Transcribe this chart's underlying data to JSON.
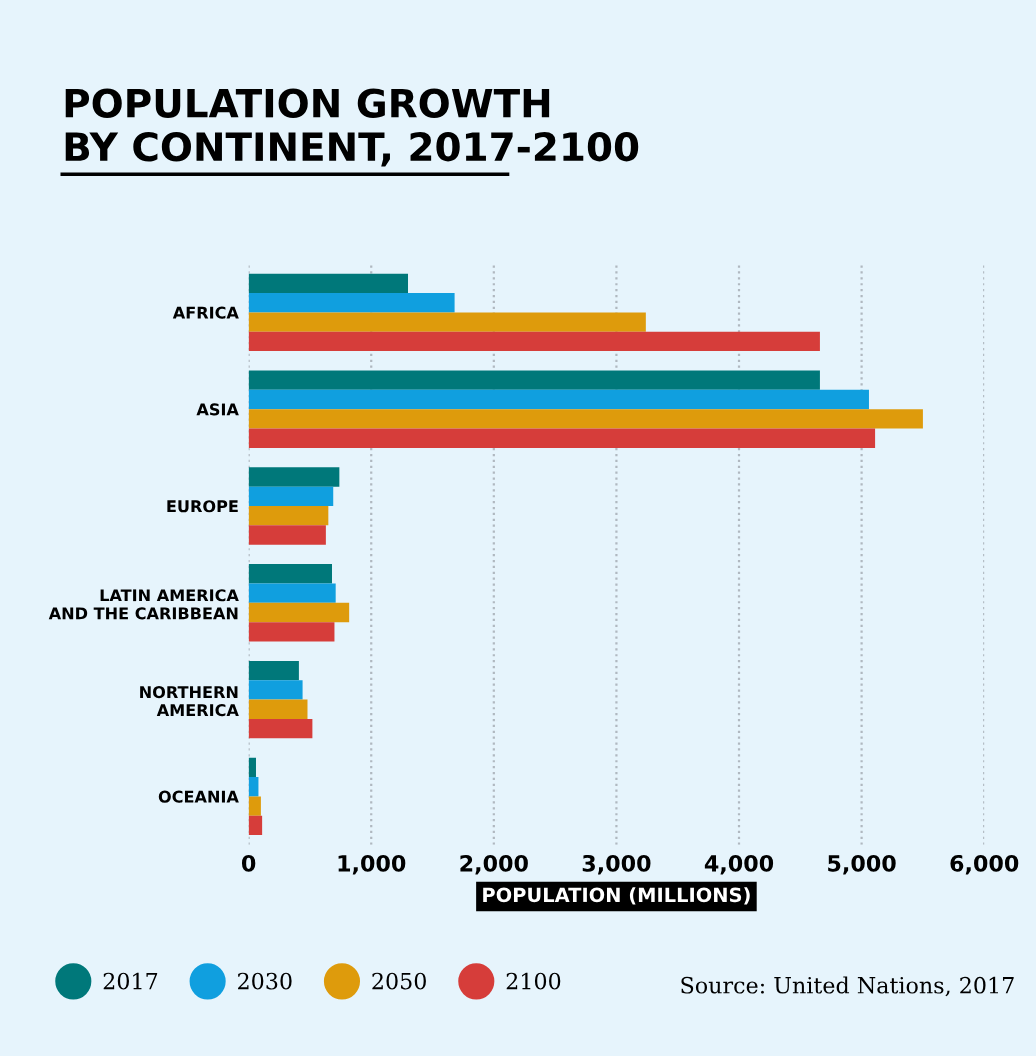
{
  "chart_data": {
    "type": "bar",
    "orientation": "horizontal",
    "title": "POPULATION GROWTH\nBY CONTINENT, 2017-2100",
    "xlabel": "POPULATION (MILLIONS)",
    "categories": [
      "AFRICA",
      "ASIA",
      "EUROPE",
      "LATIN AMERICA\nAND THE CARIBBEAN",
      "NORTHERN\nAMERICA",
      "OCEANIA"
    ],
    "series": [
      {
        "name": "2017",
        "color": "#00787a",
        "values": [
          1300,
          4660,
          740,
          680,
          410,
          60
        ]
      },
      {
        "name": "2030",
        "color": "#109fdf",
        "values": [
          1680,
          5060,
          690,
          710,
          440,
          80
        ]
      },
      {
        "name": "2050",
        "color": "#de9b0c",
        "values": [
          3240,
          5500,
          650,
          820,
          480,
          100
        ]
      },
      {
        "name": "2100",
        "color": "#d63d3a",
        "values": [
          4660,
          5110,
          630,
          700,
          520,
          110
        ]
      }
    ],
    "xlim": [
      0,
      6000
    ],
    "xticks": [
      {
        "value": 0,
        "label": "0"
      },
      {
        "value": 1000,
        "label": "1,000"
      },
      {
        "value": 2000,
        "label": "2,000"
      },
      {
        "value": 3000,
        "label": "3,000"
      },
      {
        "value": 4000,
        "label": "4,000"
      },
      {
        "value": 5000,
        "label": "5,000"
      },
      {
        "value": 6000,
        "label": "6,000"
      }
    ],
    "grid": "x",
    "legend": "bottom left",
    "annotations": [
      "Source: United Nations, 2017"
    ]
  }
}
